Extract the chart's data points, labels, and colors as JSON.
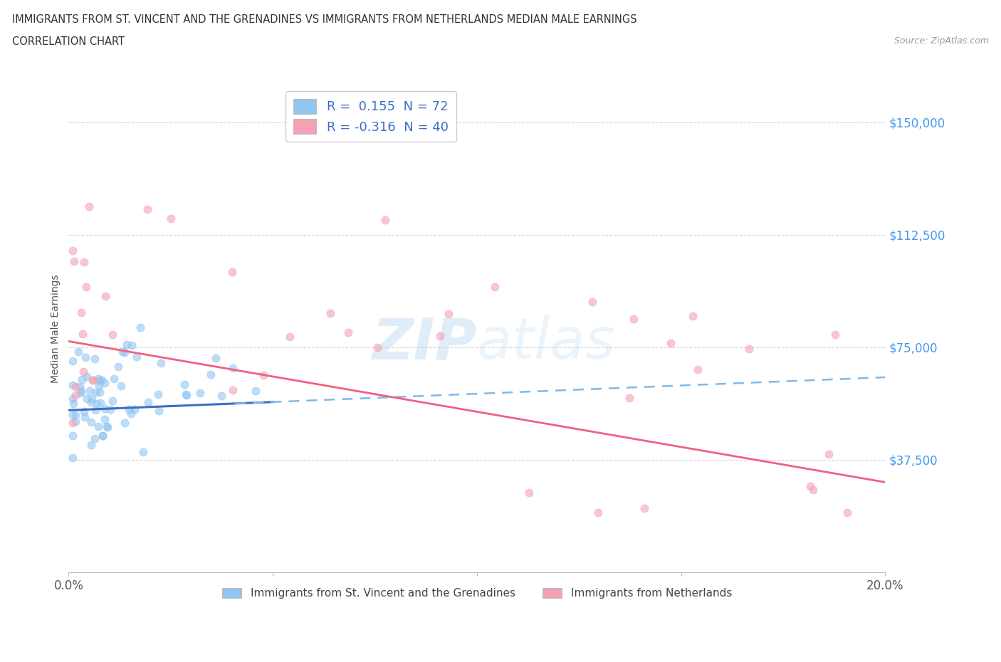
{
  "title_line1": "IMMIGRANTS FROM ST. VINCENT AND THE GRENADINES VS IMMIGRANTS FROM NETHERLANDS MEDIAN MALE EARNINGS",
  "title_line2": "CORRELATION CHART",
  "source": "Source: ZipAtlas.com",
  "ylabel": "Median Male Earnings",
  "x_min": 0.0,
  "x_max": 0.2,
  "y_min": 0,
  "y_max": 162500,
  "yticks": [
    0,
    37500,
    75000,
    112500,
    150000
  ],
  "ytick_labels": [
    "",
    "$37,500",
    "$75,000",
    "$112,500",
    "$150,000"
  ],
  "xticks": [
    0.0,
    0.05,
    0.1,
    0.15,
    0.2
  ],
  "xtick_labels": [
    "0.0%",
    "",
    "",
    "",
    "20.0%"
  ],
  "watermark": "ZIPatlas",
  "series1_color": "#92C5F0",
  "series2_color": "#F4A0B5",
  "trendline1_color": "#3B6FC4",
  "trendline2_color": "#F06080",
  "grid_color": "#C8C8C8",
  "background_color": "#FFFFFF",
  "series1_name": "Immigrants from St. Vincent and the Grenadines",
  "series2_name": "Immigrants from Netherlands",
  "trendline1_dashed_color": "#7EB8EC",
  "legend_blue_color": "#3B6FC4",
  "legend_pink_color": "#F06080",
  "ytick_color": "#4499EE",
  "title_color": "#333333",
  "source_color": "#999999"
}
